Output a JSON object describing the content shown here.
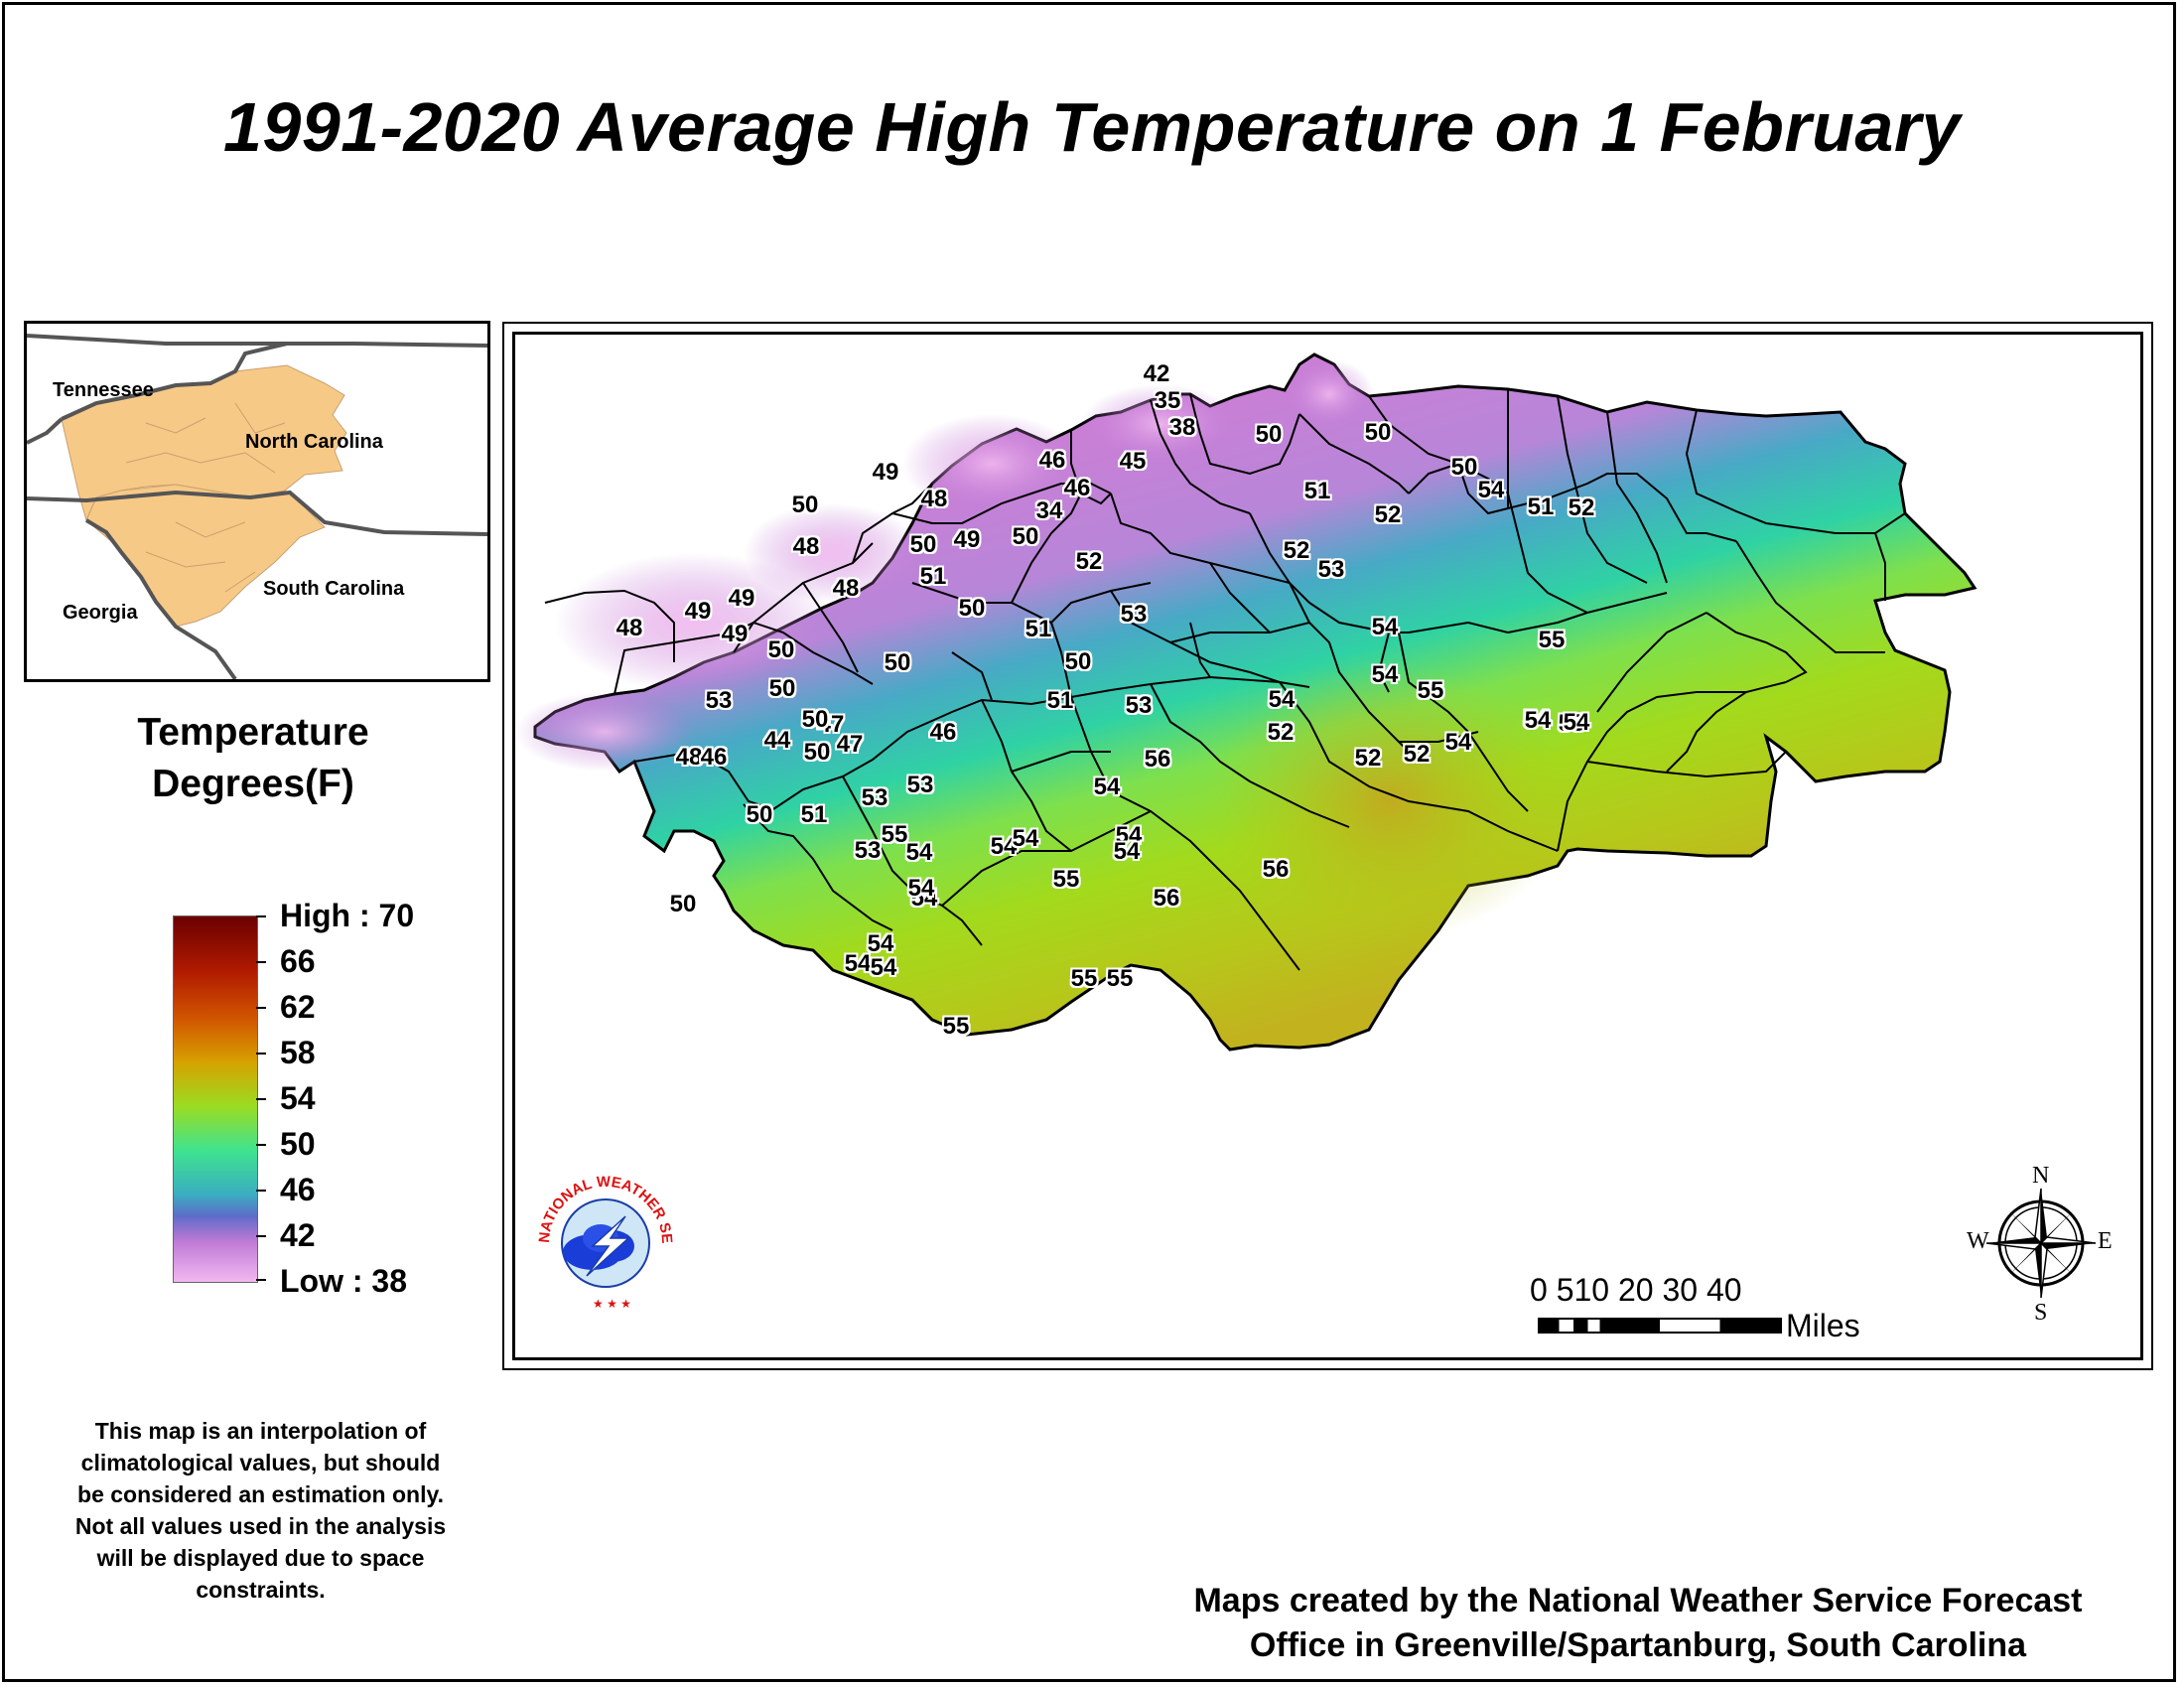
{
  "title": "1991-2020 Average High Temperature on 1 February",
  "inset": {
    "labels": {
      "tennessee": "Tennessee",
      "north_carolina": "North Carolina",
      "georgia": "Georgia",
      "south_carolina": "South Carolina"
    }
  },
  "legend": {
    "title_line1": "Temperature",
    "title_line2": "Degrees(F)",
    "high": "High : 70",
    "low": "Low : 38",
    "levels": [
      "66",
      "62",
      "58",
      "54",
      "50",
      "46",
      "42"
    ],
    "color_ramp": [
      "#6b0000",
      "#b01a00",
      "#d15500",
      "#d6a200",
      "#9bdc22",
      "#3fe38f",
      "#3aaec0",
      "#5e6cc8",
      "#c07ad6",
      "#f1b8ef"
    ]
  },
  "note": {
    "lines": [
      "This map is an interpolation of",
      "climatological values, but should",
      "be considered an estimation only.",
      "Not all values used in the analysis",
      "will be displayed due to space",
      "constraints."
    ]
  },
  "credit": {
    "line1": "Maps created by the National Weather Service Forecast",
    "line2": "Office in Greenville/Spartanburg, South Carolina"
  },
  "scale": {
    "ticks": "0 510  20  30  40",
    "unit": "Miles"
  },
  "compass": {
    "n": "N",
    "s": "S",
    "e": "E",
    "w": "W"
  },
  "logo": {
    "text": "NATIONAL WEATHER SERVICE"
  },
  "temperatures": [
    "42",
    "35",
    "38",
    "45",
    "46",
    "46",
    "34",
    "49",
    "48",
    "50",
    "48",
    "48",
    "49",
    "49",
    "50",
    "49",
    "50",
    "51",
    "50",
    "50",
    "47",
    "49",
    "48",
    "50",
    "50",
    "53",
    "44",
    "47",
    "46",
    "50",
    "50",
    "51",
    "52",
    "53",
    "51",
    "53",
    "52",
    "48",
    "46",
    "50",
    "51",
    "53",
    "53",
    "55",
    "54",
    "53",
    "54",
    "54",
    "55",
    "54",
    "56",
    "54",
    "54",
    "54",
    "54",
    "54",
    "55",
    "54",
    "55",
    "55",
    "56",
    "56",
    "54",
    "50",
    "50",
    "50",
    "50",
    "50",
    "51",
    "52",
    "52",
    "53",
    "54",
    "54",
    "55",
    "54",
    "52",
    "52",
    "55",
    "54",
    "53",
    "54",
    "51",
    "52",
    "54",
    "54",
    "54"
  ]
}
